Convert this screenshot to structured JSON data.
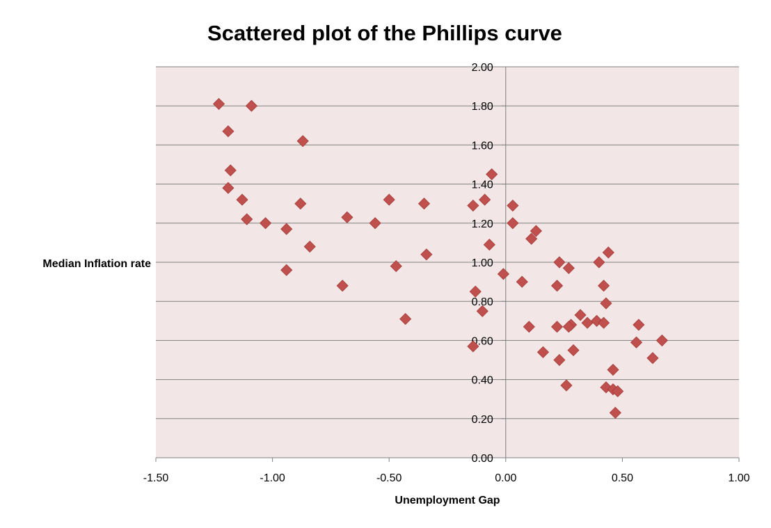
{
  "chart_data": {
    "type": "scatter",
    "title": "Scattered plot of the Phillips curve",
    "xlabel": "Unemployment Gap",
    "ylabel": "Median Inflation rate",
    "xlim": [
      -1.5,
      1.0
    ],
    "ylim": [
      0.0,
      2.0
    ],
    "x_ticks": [
      "-1.50",
      "-1.00",
      "-0.50",
      "0.00",
      "0.50",
      "1.00"
    ],
    "y_ticks": [
      "0.00",
      "0.20",
      "0.40",
      "0.60",
      "0.80",
      "1.00",
      "1.20",
      "1.40",
      "1.60",
      "1.80",
      "2.00"
    ],
    "grid": true,
    "legend": false,
    "colors": {
      "plot_background": "#f2e6e6",
      "marker": "#c0504d",
      "marker_edge": "#a23b38",
      "gridline": "#808080"
    },
    "series": [
      {
        "points": [
          [
            -1.23,
            1.81
          ],
          [
            -1.09,
            1.8
          ],
          [
            -1.19,
            1.67
          ],
          [
            -0.87,
            1.62
          ],
          [
            -1.18,
            1.47
          ],
          [
            -1.19,
            1.38
          ],
          [
            -1.13,
            1.32
          ],
          [
            -1.11,
            1.22
          ],
          [
            -1.03,
            1.2
          ],
          [
            -0.88,
            1.3
          ],
          [
            -0.94,
            1.17
          ],
          [
            -0.84,
            1.08
          ],
          [
            -0.94,
            0.96
          ],
          [
            -0.68,
            1.23
          ],
          [
            -0.7,
            0.88
          ],
          [
            -0.56,
            1.2
          ],
          [
            -0.5,
            1.32
          ],
          [
            -0.47,
            0.98
          ],
          [
            -0.35,
            1.3
          ],
          [
            -0.34,
            1.04
          ],
          [
            -0.43,
            0.71
          ],
          [
            -0.14,
            1.29
          ],
          [
            -0.09,
            1.32
          ],
          [
            -0.06,
            1.45
          ],
          [
            -0.07,
            1.09
          ],
          [
            -0.13,
            0.85
          ],
          [
            -0.1,
            0.75
          ],
          [
            -0.14,
            0.57
          ],
          [
            0.03,
            1.29
          ],
          [
            0.03,
            1.2
          ],
          [
            0.13,
            1.16
          ],
          [
            0.11,
            1.12
          ],
          [
            -0.01,
            0.94
          ],
          [
            0.07,
            0.9
          ],
          [
            0.23,
            1.0
          ],
          [
            0.27,
            0.97
          ],
          [
            0.22,
            0.88
          ],
          [
            0.4,
            1.0
          ],
          [
            0.44,
            1.05
          ],
          [
            0.42,
            0.88
          ],
          [
            0.43,
            0.79
          ],
          [
            0.1,
            0.67
          ],
          [
            0.16,
            0.54
          ],
          [
            0.22,
            0.67
          ],
          [
            0.23,
            0.5
          ],
          [
            0.29,
            0.55
          ],
          [
            0.28,
            0.68
          ],
          [
            0.27,
            0.67
          ],
          [
            0.32,
            0.73
          ],
          [
            0.35,
            0.69
          ],
          [
            0.39,
            0.7
          ],
          [
            0.42,
            0.69
          ],
          [
            0.26,
            0.37
          ],
          [
            0.46,
            0.45
          ],
          [
            0.43,
            0.36
          ],
          [
            0.46,
            0.35
          ],
          [
            0.48,
            0.34
          ],
          [
            0.47,
            0.23
          ],
          [
            0.57,
            0.68
          ],
          [
            0.56,
            0.59
          ],
          [
            0.63,
            0.51
          ],
          [
            0.67,
            0.6
          ]
        ]
      }
    ]
  }
}
